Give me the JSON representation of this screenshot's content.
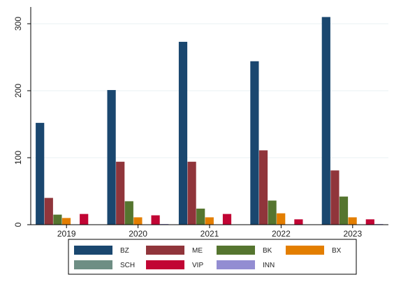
{
  "chart_data": {
    "type": "bar",
    "categories": [
      "2019",
      "2020",
      "2021",
      "2022",
      "2023"
    ],
    "series": [
      {
        "name": "BZ",
        "color": "#1a476f",
        "values": [
          152,
          201,
          273,
          244,
          310
        ]
      },
      {
        "name": "ME",
        "color": "#90353b",
        "values": [
          40,
          94,
          94,
          111,
          81
        ]
      },
      {
        "name": "BK",
        "color": "#55752f",
        "values": [
          15,
          35,
          24,
          36,
          42
        ]
      },
      {
        "name": "BX",
        "color": "#e37e00",
        "values": [
          10,
          11,
          11,
          17,
          11
        ]
      },
      {
        "name": "SCH",
        "color": "#6e8e84",
        "values": [
          0,
          0,
          0,
          0,
          0
        ]
      },
      {
        "name": "VIP",
        "color": "#c10534",
        "values": [
          16,
          14,
          16,
          8,
          8
        ]
      },
      {
        "name": "INN",
        "color": "#938dd2",
        "values": [
          0,
          1,
          0,
          0,
          1
        ]
      }
    ],
    "ylim": [
      0,
      325
    ],
    "yticks": [
      0,
      100,
      200,
      300
    ],
    "grid": true,
    "legend_position": "bottom",
    "title": "",
    "xlabel": "",
    "ylabel": ""
  }
}
